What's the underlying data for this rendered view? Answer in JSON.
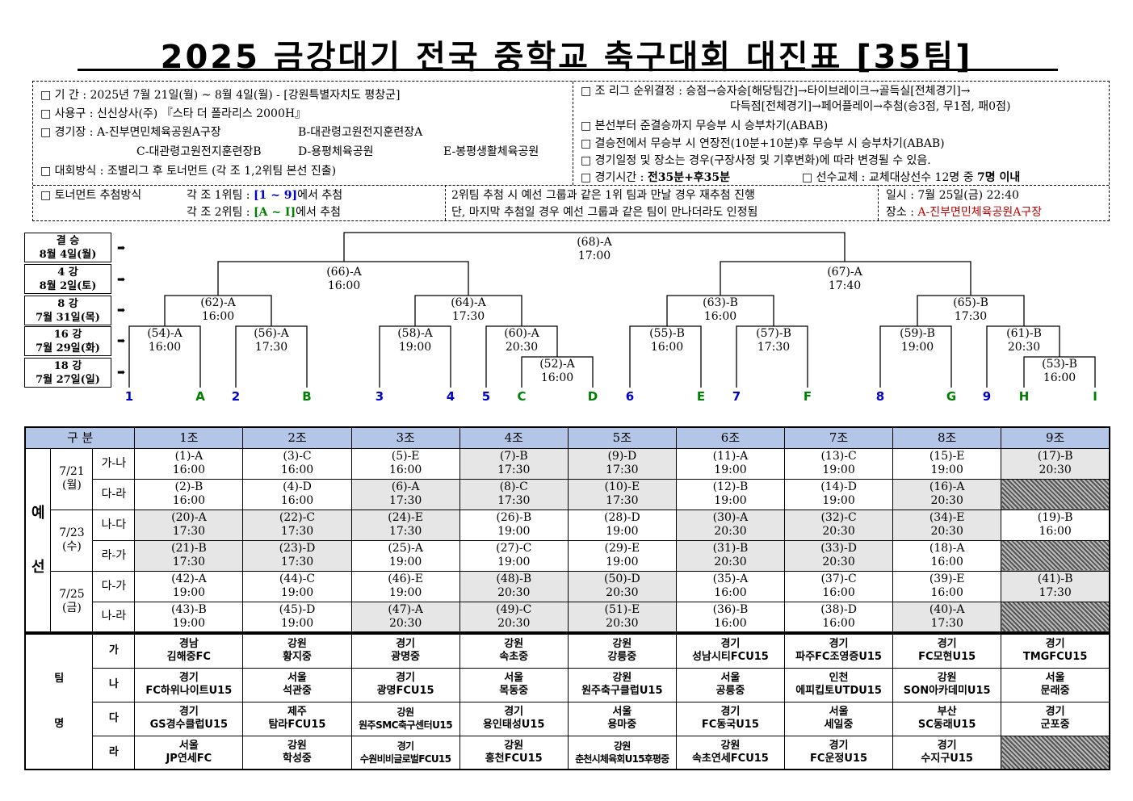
{
  "title": "2025 금강대기 전국 중학교 축구대회 대진표 [35팀]",
  "info": {
    "period": "□ 기  간 : 2025년 7월 21일(월) ~ 8월 4일(월) - [강원특별자치도 평창군]",
    "ball": "□ 사용구 : 신신상사(주) 『스타 더 폴라리스 2000H』",
    "venue_prefix": "□ 경기장 : ",
    "venue_a": "A-진부면민체육공원A구장",
    "venue_b": "B-대관령고원전지훈련장A",
    "venue_c": "C-대관령고원전지훈련장B",
    "venue_d": "D-용평체육공원",
    "venue_e": "E-봉평생활체육공원",
    "method": "□ 대회방식 : 조별리그 후 토너먼트 (각 조 1,2위팀 본선 진출)",
    "rank1": "□ 조 리그 순위결정 : 승점→승자승[해당팀간]→타이브레이크→골득실[전체경기]→",
    "rank2": "다득점[전체경기]→페어플레이→추첨(승3점, 무1점, 패0점)",
    "final_pk": "□ 본선부터 준결승까지 무승부 시 승부차기(ABAB)",
    "final_et": "□ 결승전에서 무승부 시 연장전(10분+10분)후 무승부 시 승부차기(ABAB)",
    "change": "□ 경기일정 및 장소는 경우(구장사정 및 기후변화)에 따라 변경될 수 있음.",
    "time_label": "□ 경기시간 : ",
    "time_value": "전35분+후35분",
    "sub_label": "□ 선수교체 : 교체대상선수 12명 중 ",
    "sub_value": "7명 이내",
    "draw_label": "□ 토너먼트 추첨방식",
    "draw1_a": "각 조 1위팀 : ",
    "draw1_b": "[1 ~ 9]",
    "draw1_c": "에서 추첨",
    "draw2_a": "각 조 2위팀 : ",
    "draw2_b": "[A ~ I]",
    "draw2_c": "에서 추첨",
    "redraw1": "2위팀 추첨 시 예선 그룹과 같은 1위 팀과 만날 경우 재추첨 진행",
    "redraw2": "단, 마지막 추첨일 경우 예선 그룹과 같은 팀이 만나더라도 인정됨",
    "date": "일시 : 7월 25일(금) 22:40",
    "place_prefix": "장소 : ",
    "place_value": "A-진부면민체육공원A구장"
  },
  "rounds": [
    {
      "name": "결 승",
      "date": "8월 4일(월)"
    },
    {
      "name": "4 강",
      "date": "8월 2일(토)"
    },
    {
      "name": "8 강",
      "date": "7월 31일(목)"
    },
    {
      "name": "16 강",
      "date": "7월 29일(화)"
    },
    {
      "name": "18 강",
      "date": "7월 27일(일)"
    }
  ],
  "arrow": "➡",
  "matches": {
    "m68": [
      "(68)-A",
      "17:00"
    ],
    "m66": [
      "(66)-A",
      "16:00"
    ],
    "m67": [
      "(67)-A",
      "17:40"
    ],
    "m62": [
      "(62)-A",
      "16:00"
    ],
    "m64": [
      "(64)-A",
      "17:30"
    ],
    "m63": [
      "(63)-B",
      "16:00"
    ],
    "m65": [
      "(65)-B",
      "17:30"
    ],
    "m54": [
      "(54)-A",
      "16:00"
    ],
    "m56": [
      "(56)-A",
      "17:30"
    ],
    "m58": [
      "(58)-A",
      "19:00"
    ],
    "m60": [
      "(60)-A",
      "20:30"
    ],
    "m52": [
      "(52)-A",
      "16:00"
    ],
    "m55": [
      "(55)-B",
      "16:00"
    ],
    "m57": [
      "(57)-B",
      "17:30"
    ],
    "m59": [
      "(59)-B",
      "19:00"
    ],
    "m61": [
      "(61)-B",
      "20:30"
    ],
    "m53": [
      "(53)-B",
      "16:00"
    ]
  },
  "slots": [
    "1",
    "A",
    "2",
    "B",
    "3",
    "4",
    "5",
    "C",
    "D",
    "6",
    "E",
    "7",
    "F",
    "8",
    "G",
    "9",
    "H",
    "I"
  ],
  "colors": {
    "blue": "#0000cc",
    "green": "#008000",
    "header": "#b4c6e7",
    "gray": "#e6e6e6",
    "purple": "#7030a0",
    "red": "#c00000"
  },
  "schedule": {
    "h_gubun": "구 분",
    "groups": [
      "1조",
      "2조",
      "3조",
      "4조",
      "5조",
      "6조",
      "7조",
      "8조",
      "9조"
    ],
    "yeseon": [
      "예",
      "선"
    ],
    "days": [
      {
        "date": "7/21",
        "dow": "(월)"
      },
      {
        "date": "7/23",
        "dow": "(수)"
      },
      {
        "date": "7/25",
        "dow": "(금)"
      }
    ],
    "rows": [
      {
        "pair": "가-나",
        "cells": [
          [
            "(1)-A",
            "16:00"
          ],
          [
            "(3)-C",
            "16:00"
          ],
          [
            "(5)-E",
            "16:00"
          ],
          [
            "(7)-B",
            "17:30"
          ],
          [
            "(9)-D",
            "17:30"
          ],
          [
            "(11)-A",
            "19:00"
          ],
          [
            "(13)-C",
            "19:00"
          ],
          [
            "(15)-E",
            "19:00"
          ],
          [
            "(17)-B",
            "20:30"
          ]
        ]
      },
      {
        "pair": "다-라",
        "cells": [
          [
            "(2)-B",
            "16:00"
          ],
          [
            "(4)-D",
            "16:00"
          ],
          [
            "(6)-A",
            "17:30"
          ],
          [
            "(8)-C",
            "17:30"
          ],
          [
            "(10)-E",
            "17:30"
          ],
          [
            "(12)-B",
            "19:00"
          ],
          [
            "(14)-D",
            "19:00"
          ],
          [
            "(16)-A",
            "20:30"
          ],
          null
        ]
      },
      {
        "pair": "나-다",
        "cells": [
          [
            "(20)-A",
            "17:30"
          ],
          [
            "(22)-C",
            "17:30"
          ],
          [
            "(24)-E",
            "17:30"
          ],
          [
            "(26)-B",
            "19:00"
          ],
          [
            "(28)-D",
            "19:00"
          ],
          [
            "(30)-A",
            "20:30"
          ],
          [
            "(32)-C",
            "20:30"
          ],
          [
            "(34)-E",
            "20:30"
          ],
          [
            "(19)-B",
            "16:00"
          ]
        ]
      },
      {
        "pair": "라-가",
        "cells": [
          [
            "(21)-B",
            "17:30"
          ],
          [
            "(23)-D",
            "17:30"
          ],
          [
            "(25)-A",
            "19:00"
          ],
          [
            "(27)-C",
            "19:00"
          ],
          [
            "(29)-E",
            "19:00"
          ],
          [
            "(31)-B",
            "20:30"
          ],
          [
            "(33)-D",
            "20:30"
          ],
          [
            "(18)-A",
            "16:00"
          ],
          null
        ]
      },
      {
        "pair": "다-가",
        "cells": [
          [
            "(42)-A",
            "19:00"
          ],
          [
            "(44)-C",
            "19:00"
          ],
          [
            "(46)-E",
            "19:00"
          ],
          [
            "(48)-B",
            "20:30"
          ],
          [
            "(50)-D",
            "20:30"
          ],
          [
            "(35)-A",
            "16:00"
          ],
          [
            "(37)-C",
            "16:00"
          ],
          [
            "(39)-E",
            "16:00"
          ],
          [
            "(41)-B",
            "17:30"
          ]
        ]
      },
      {
        "pair": "나-라",
        "cells": [
          [
            "(43)-B",
            "19:00"
          ],
          [
            "(45)-D",
            "19:00"
          ],
          [
            "(47)-A",
            "20:30"
          ],
          [
            "(49)-C",
            "20:30"
          ],
          [
            "(51)-E",
            "20:30"
          ],
          [
            "(36)-B",
            "16:00"
          ],
          [
            "(38)-D",
            "16:00"
          ],
          [
            "(40)-A",
            "17:30"
          ],
          null
        ]
      }
    ]
  },
  "teams": {
    "label": [
      "팀",
      "명"
    ],
    "rows": [
      {
        "slot": "가",
        "cells": [
          [
            "경남",
            "김해중FC"
          ],
          [
            "강원",
            "황지중"
          ],
          [
            "경기",
            "광명중"
          ],
          [
            "강원",
            "속초중"
          ],
          [
            "강원",
            "강릉중"
          ],
          [
            "경기",
            "성남시티FCU15"
          ],
          [
            "경기",
            "파주FC조영증U15"
          ],
          [
            "경기",
            "FC모현U15"
          ],
          [
            "경기",
            "TMGFCU15"
          ]
        ]
      },
      {
        "slot": "나",
        "cells": [
          [
            "경기",
            "FC하위나이트U15"
          ],
          [
            "서울",
            "석관중"
          ],
          [
            "경기",
            "광명FCU15"
          ],
          [
            "서울",
            "목동중"
          ],
          [
            "강원",
            "원주축구클럽U15"
          ],
          [
            "서울",
            "공릉중"
          ],
          [
            "인천",
            "에피킵토UTDU15"
          ],
          [
            "강원",
            "SON아카데미U15"
          ],
          [
            "서울",
            "문래중"
          ]
        ]
      },
      {
        "slot": "다",
        "cells": [
          [
            "경기",
            "GS경수클럽U15"
          ],
          [
            "제주",
            "탐라FCU15"
          ],
          [
            "강원",
            "원주SMC축구센터U15"
          ],
          [
            "경기",
            "용인태성U15"
          ],
          [
            "서울",
            "용마중"
          ],
          [
            "경기",
            "FC동국U15"
          ],
          [
            "서울",
            "세일중"
          ],
          [
            "부산",
            "SC동래U15"
          ],
          [
            "경기",
            "군포중"
          ]
        ]
      },
      {
        "slot": "라",
        "cells": [
          [
            "서울",
            "JP연세FC"
          ],
          [
            "강원",
            "학성중"
          ],
          [
            "경기",
            "수원비비글로벌FCU15"
          ],
          [
            "강원",
            "홍천FCU15"
          ],
          [
            "강원",
            "춘천시체육회U15후평중"
          ],
          [
            "강원",
            "속초연세FCU15"
          ],
          [
            "경기",
            "FC운정U15"
          ],
          [
            "경기",
            "수지구U15"
          ],
          null
        ]
      }
    ]
  }
}
